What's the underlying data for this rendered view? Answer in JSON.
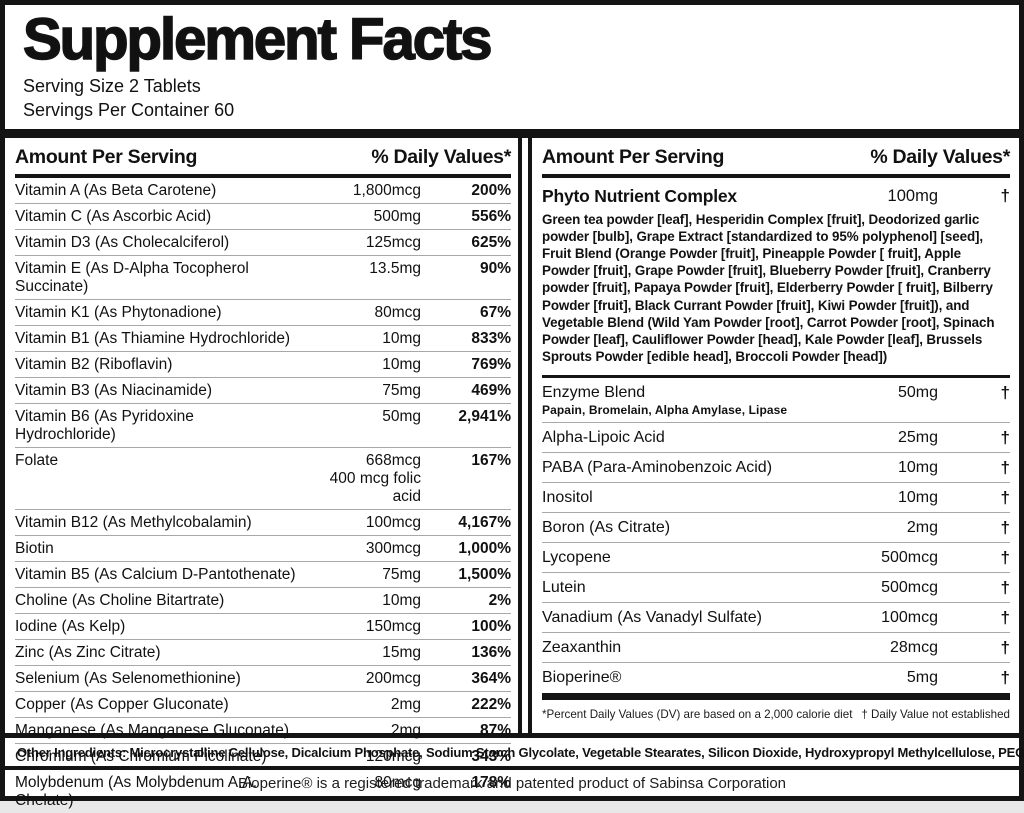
{
  "colors": {
    "text": "#141414",
    "background": "#ffffff",
    "separator": "#a8a8a8"
  },
  "header": {
    "title": "Supplement Facts",
    "serving_size": "Serving Size 2 Tablets",
    "servings_per_container": "Servings Per Container 60"
  },
  "left_column": {
    "header": {
      "amount_label": "Amount Per Serving",
      "dv_label": "% Daily Values*"
    },
    "rows": [
      {
        "name": "Vitamin A (As Beta Carotene)",
        "amount": "1,800mcg",
        "dv": "200%"
      },
      {
        "name": "Vitamin C (As Ascorbic Acid)",
        "amount": "500mg",
        "dv": "556%"
      },
      {
        "name": "Vitamin D3 (As Cholecalciferol)",
        "amount": "125mcg",
        "dv": "625%"
      },
      {
        "name": "Vitamin E (As D-Alpha Tocopherol Succinate)",
        "amount": "13.5mg",
        "dv": "90%"
      },
      {
        "name": "Vitamin K1 (As Phytonadione)",
        "amount": "80mcg",
        "dv": "67%"
      },
      {
        "name": "Vitamin B1 (As Thiamine Hydrochloride)",
        "amount": "10mg",
        "dv": "833%"
      },
      {
        "name": "Vitamin B2 (Riboflavin)",
        "amount": "10mg",
        "dv": "769%"
      },
      {
        "name": "Vitamin B3 (As Niacinamide)",
        "amount": "75mg",
        "dv": "469%"
      },
      {
        "name": "Vitamin B6 (As Pyridoxine Hydrochloride)",
        "amount": "50mg",
        "dv": "2,941%"
      },
      {
        "name": "Folate",
        "amount": "668mcg",
        "amount2": "400 mcg folic acid",
        "dv": "167%"
      },
      {
        "name": "Vitamin B12 (As Methylcobalamin)",
        "amount": "100mcg",
        "dv": "4,167%"
      },
      {
        "name": "Biotin",
        "amount": "300mcg",
        "dv": "1,000%"
      },
      {
        "name": "Vitamin B5 (As Calcium D-Pantothenate)",
        "amount": "75mg",
        "dv": "1,500%"
      },
      {
        "name": "Choline (As Choline Bitartrate)",
        "amount": "10mg",
        "dv": "2%"
      },
      {
        "name": "Iodine (As Kelp)",
        "amount": "150mcg",
        "dv": "100%"
      },
      {
        "name": "Zinc (As Zinc Citrate)",
        "amount": "15mg",
        "dv": "136%"
      },
      {
        "name": "Selenium (As Selenomethionine)",
        "amount": "200mcg",
        "dv": "364%"
      },
      {
        "name": "Copper (As Copper Gluconate)",
        "amount": "2mg",
        "dv": "222%"
      },
      {
        "name": "Manganese (As Manganese Gluconate)",
        "amount": "2mg",
        "dv": "87%"
      },
      {
        "name": "Chromium (As Chromium Picolinate)",
        "amount": "120mcg",
        "dv": "343%"
      },
      {
        "name": "Molybdenum (As Molybdenum A.A. Chelate)",
        "amount": "80mcg",
        "dv": "178%"
      }
    ]
  },
  "right_column": {
    "header": {
      "amount_label": "Amount Per Serving",
      "dv_label": "% Daily Values*"
    },
    "complex": {
      "name": "Phyto Nutrient Complex",
      "amount": "100mg",
      "dv": "†",
      "description": "Green tea powder [leaf], Hesperidin Complex [fruit], Deodorized garlic powder [bulb], Grape Extract [standardized to 95% polyphenol] [seed], Fruit Blend (Orange Powder [fruit], Pineapple Powder [ fruit], Apple Powder [fruit], Grape Powder [fruit], Blueberry Powder [fruit], Cranberry powder [fruit], Papaya Powder [fruit], Elderberry Powder [ fruit], Bilberry Powder [fruit], Black Currant Powder [fruit], Kiwi Powder [fruit]), and Vegetable Blend (Wild Yam Powder [root], Carrot Powder [root], Spinach Powder [leaf], Cauliflower Powder [head], Kale Powder [leaf], Brussels Sprouts Powder [edible head], Broccoli Powder [head])"
    },
    "rows": [
      {
        "name": "Enzyme Blend",
        "sub": "Papain, Bromelain, Alpha Amylase, Lipase",
        "amount": "50mg",
        "dv": "†"
      },
      {
        "name": "Alpha-Lipoic Acid",
        "amount": "25mg",
        "dv": "†"
      },
      {
        "name": "PABA (Para-Aminobenzoic Acid)",
        "amount": "10mg",
        "dv": "†"
      },
      {
        "name": "Inositol",
        "amount": "10mg",
        "dv": "†"
      },
      {
        "name": "Boron (As Citrate)",
        "amount": "2mg",
        "dv": "†"
      },
      {
        "name": "Lycopene",
        "amount": "500mcg",
        "dv": "†"
      },
      {
        "name": "Lutein",
        "amount": "500mcg",
        "dv": "†"
      },
      {
        "name": "Vanadium (As Vanadyl Sulfate)",
        "amount": "100mcg",
        "dv": "†"
      },
      {
        "name": "Zeaxanthin",
        "amount": "28mcg",
        "dv": "†"
      },
      {
        "name": "Bioperine®",
        "amount": "5mg",
        "dv": "†"
      }
    ],
    "footnotes": {
      "left": "*Percent Daily Values (DV) are based on a 2,000 calorie diet",
      "right": "† Daily Value not established"
    }
  },
  "footer": {
    "other_ingredients_label": "Other Ingredients:",
    "other_ingredients_text": " Microcrystalline Cellulose, Dicalcium Phosphate, Sodium Starch Glycolate, Vegetable Stearates, Silicon Dioxide, Hydroxypropyl Methylcellulose, PEG",
    "trademark": "Bioperine® is a registered trademark and patented product of Sabinsa Corporation"
  }
}
